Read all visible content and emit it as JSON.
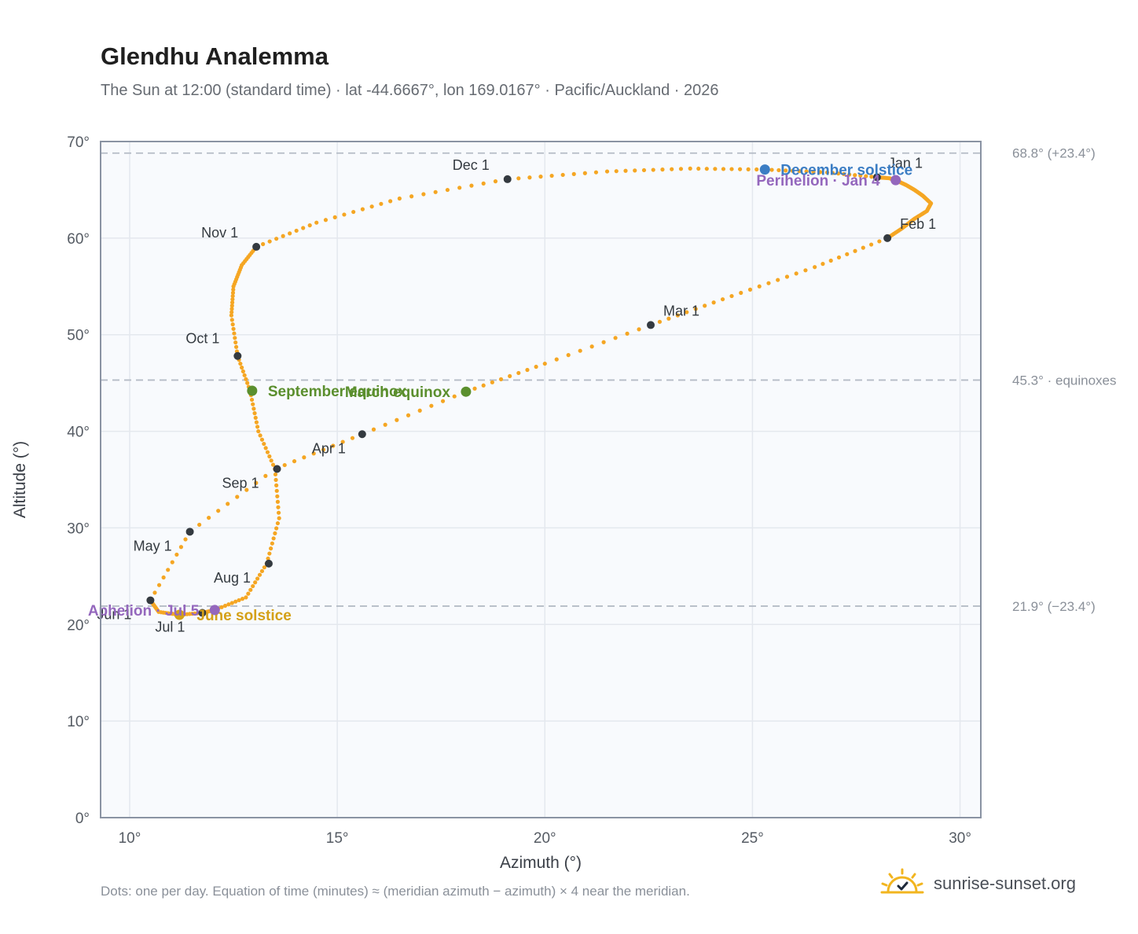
{
  "page": {
    "title": "Glendhu Analemma",
    "subtitle": "The Sun at 12:00 (standard time) · lat -44.6667°, lon 169.0167° · Pacific/Auckland · 2026",
    "footnote": "Dots: one per day. Equation of time (minutes) ≈ (meridian azimuth − azimuth) × 4 near the meridian.",
    "brand": "sunrise-sunset.org",
    "brand_icon": "sun-logo-icon"
  },
  "colors": {
    "curve": "#f5a623",
    "month_marker": "#343a40",
    "solstice_june": "#d4a017",
    "solstice_december": "#3b7dc4",
    "equinox": "#5b8f2e",
    "apsis": "#9467bd",
    "reference_line": "#b5bcc6",
    "plot_bg": "#f8fafd",
    "grid": "#e4e8ee",
    "frame": "#8a93a3"
  },
  "chart_data": {
    "type": "scatter",
    "xlabel": "Azimuth (°)",
    "ylabel": "Altitude (°)",
    "xlim": [
      9.3,
      30.5
    ],
    "ylim": [
      0,
      70
    ],
    "xticks": [
      10,
      15,
      20,
      25,
      30
    ],
    "yticks": [
      0,
      10,
      20,
      30,
      40,
      50,
      60,
      70
    ],
    "xtick_labels": [
      "10°",
      "15°",
      "20°",
      "25°",
      "30°"
    ],
    "ytick_labels": [
      "0°",
      "10°",
      "20°",
      "30°",
      "40°",
      "50°",
      "60°",
      "70°"
    ],
    "grid": true,
    "series": [
      {
        "points": [
          [
            28.0,
            66.3
          ],
          [
            28.3,
            66.2
          ],
          [
            28.5,
            65.9
          ],
          [
            28.7,
            65.5
          ],
          [
            28.9,
            65.0
          ],
          [
            29.1,
            64.4
          ],
          [
            29.3,
            63.6
          ],
          [
            29.2,
            62.8
          ],
          [
            28.9,
            62.0
          ],
          [
            28.6,
            61.0
          ],
          [
            28.25,
            60.0
          ],
          [
            26.5,
            57.0
          ],
          [
            24.5,
            54.0
          ],
          [
            22.55,
            51.0
          ],
          [
            20.0,
            47.0
          ],
          [
            18.1,
            44.1
          ],
          [
            15.6,
            39.7
          ],
          [
            13.5,
            36.1
          ],
          [
            11.45,
            29.6
          ],
          [
            10.5,
            22.5
          ],
          [
            10.7,
            21.3
          ],
          [
            11.2,
            21.0
          ],
          [
            11.75,
            21.2
          ],
          [
            12.05,
            21.5
          ],
          [
            12.8,
            22.8
          ],
          [
            13.3,
            26.3
          ],
          [
            13.6,
            31.0
          ],
          [
            13.5,
            36.1
          ],
          [
            13.1,
            40.0
          ],
          [
            12.9,
            44.2
          ],
          [
            12.6,
            47.8
          ],
          [
            12.45,
            52.0
          ],
          [
            12.5,
            55.0
          ],
          [
            12.7,
            57.2
          ],
          [
            13.05,
            59.1
          ],
          [
            14.5,
            61.6
          ],
          [
            16.5,
            64.1
          ],
          [
            19.1,
            66.1
          ],
          [
            21.5,
            66.9
          ],
          [
            23.5,
            67.2
          ],
          [
            25.3,
            67.1
          ],
          [
            26.8,
            66.8
          ],
          [
            28.0,
            66.3
          ]
        ]
      }
    ],
    "month_markers": [
      {
        "label": "Jan 1",
        "x": 28.0,
        "y": 66.3
      },
      {
        "label": "Feb 1",
        "x": 28.25,
        "y": 60.0
      },
      {
        "label": "Mar 1",
        "x": 22.55,
        "y": 51.0
      },
      {
        "label": "Apr 1",
        "x": 15.6,
        "y": 39.7
      },
      {
        "label": "May 1",
        "x": 11.45,
        "y": 29.6
      },
      {
        "label": "Jun 1",
        "x": 10.5,
        "y": 22.5
      },
      {
        "label": "Jul 1",
        "x": 11.75,
        "y": 21.2
      },
      {
        "label": "Aug 1",
        "x": 13.35,
        "y": 26.3
      },
      {
        "label": "Sep 1",
        "x": 13.55,
        "y": 36.1
      },
      {
        "label": "Oct 1",
        "x": 12.6,
        "y": 47.8
      },
      {
        "label": "Nov 1",
        "x": 13.05,
        "y": 59.1
      },
      {
        "label": "Dec 1",
        "x": 19.1,
        "y": 66.1
      }
    ],
    "events": [
      {
        "label": "December solstice",
        "x": 25.3,
        "y": 67.1,
        "kind": "solstice_december"
      },
      {
        "label": "June solstice",
        "x": 11.2,
        "y": 21.0,
        "kind": "solstice_june"
      },
      {
        "label": "March equinox",
        "x": 18.1,
        "y": 44.1,
        "kind": "equinox"
      },
      {
        "label": "September equinox",
        "x": 12.95,
        "y": 44.2,
        "kind": "equinox"
      },
      {
        "label": "Perihelion · Jan 4",
        "x": 28.45,
        "y": 66.0,
        "kind": "apsis"
      },
      {
        "label": "Aphelion · Jul 5",
        "x": 12.05,
        "y": 21.5,
        "kind": "apsis"
      }
    ],
    "reference_lines": [
      {
        "y": 68.8,
        "label": "68.8° (+23.4°)"
      },
      {
        "y": 45.3,
        "label": "45.3° · equinoxes"
      },
      {
        "y": 21.9,
        "label": "21.9° (−23.4°)"
      }
    ]
  }
}
